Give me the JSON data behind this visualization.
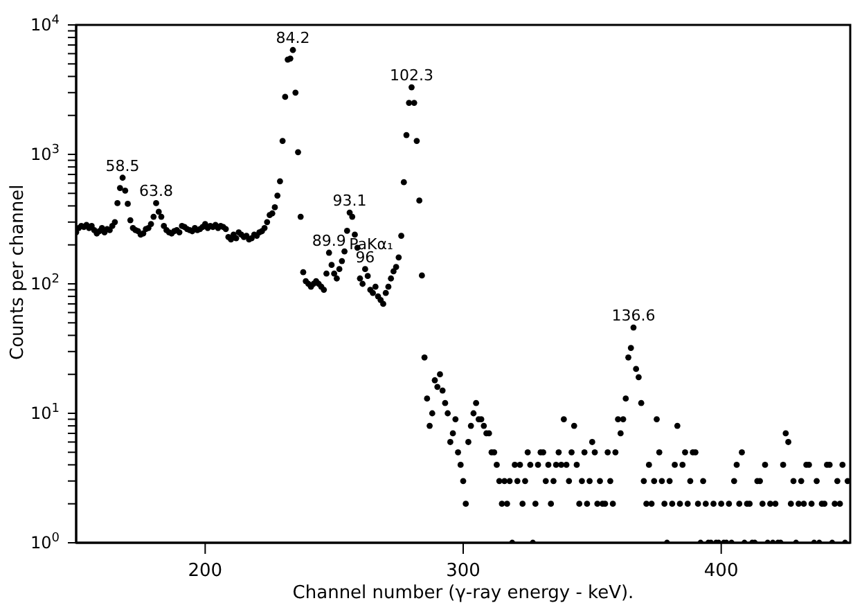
{
  "chart_data": {
    "type": "scatter",
    "xlabel": "Channel number (γ-ray energy - keV).",
    "ylabel": "Counts per channel",
    "log": "y",
    "marker": "circle",
    "grid": false,
    "xlim": [
      150,
      450
    ],
    "xticks": [
      200,
      300,
      400
    ],
    "ylim": [
      1,
      10000
    ],
    "yticks": [
      {
        "value": 1,
        "label": "10$^{0}$"
      },
      {
        "value": 2,
        "label": null
      },
      {
        "value": 3,
        "label": null
      },
      {
        "value": 4,
        "label": null
      },
      {
        "value": 5,
        "label": null
      },
      {
        "value": 6,
        "label": null
      },
      {
        "value": 7,
        "label": null
      },
      {
        "value": 8,
        "label": null
      },
      {
        "value": 9,
        "label": null
      },
      {
        "value": 10,
        "label": "10$^{1}$"
      },
      {
        "value": 20,
        "label": null
      },
      {
        "value": 30,
        "label": null
      },
      {
        "value": 40,
        "label": null
      },
      {
        "value": 50,
        "label": null
      },
      {
        "value": 60,
        "label": null
      },
      {
        "value": 70,
        "label": null
      },
      {
        "value": 80,
        "label": null
      },
      {
        "value": 90,
        "label": null
      },
      {
        "value": 100,
        "label": "10$^{2}$"
      },
      {
        "value": 200,
        "label": null
      },
      {
        "value": 300,
        "label": null
      },
      {
        "value": 400,
        "label": null
      },
      {
        "value": 500,
        "label": null
      },
      {
        "value": 600,
        "label": null
      },
      {
        "value": 700,
        "label": null
      },
      {
        "value": 800,
        "label": null
      },
      {
        "value": 900,
        "label": null
      },
      {
        "value": 1000,
        "label": "10$^{3}$"
      },
      {
        "value": 2000,
        "label": null
      },
      {
        "value": 3000,
        "label": null
      },
      {
        "value": 4000,
        "label": null
      },
      {
        "value": 5000,
        "label": null
      },
      {
        "value": 6000,
        "label": null
      },
      {
        "value": 7000,
        "label": null
      },
      {
        "value": 8000,
        "label": null
      },
      {
        "value": 9000,
        "label": null
      },
      {
        "value": 10000,
        "label": "10$^{4}$"
      }
    ],
    "annotations": [
      {
        "text": "58.5",
        "x": 168,
        "y": 660
      },
      {
        "text": "63.8",
        "x": 181,
        "y": 420
      },
      {
        "text": "84.2",
        "x": 234,
        "y": 6400
      },
      {
        "text": "89.9",
        "x": 248,
        "y": 174
      },
      {
        "text": "93.1",
        "x": 256,
        "y": 355
      },
      "PaKα₁",
      {
        "text": "96",
        "x": 262,
        "y": 130
      },
      {
        "text": "102.3",
        "x": 280,
        "y": 3300
      },
      {
        "text": "136.6",
        "x": 366,
        "y": 46
      }
    ],
    "series": [
      {
        "color": "#000000",
        "x": [
          150,
          151,
          152,
          153,
          154,
          155,
          156,
          157,
          158,
          159,
          160,
          161,
          162,
          163,
          164,
          165,
          166,
          167,
          168,
          169,
          170,
          171,
          172,
          173,
          174,
          175,
          176,
          177,
          178,
          179,
          180,
          181,
          182,
          183,
          184,
          185,
          186,
          187,
          188,
          189,
          190,
          191,
          192,
          193,
          194,
          195,
          196,
          197,
          198,
          199,
          200,
          201,
          202,
          203,
          204,
          205,
          206,
          207,
          208,
          209,
          210,
          211,
          212,
          213,
          214,
          215,
          216,
          217,
          218,
          219,
          220,
          221,
          222,
          223,
          224,
          225,
          226,
          227,
          228,
          229,
          230,
          231,
          232,
          233,
          234,
          235,
          236,
          237,
          238,
          239,
          240,
          241,
          242,
          243,
          244,
          245,
          246,
          247,
          248,
          249,
          250,
          251,
          252,
          253,
          254,
          255,
          256,
          257,
          258,
          259,
          260,
          261,
          262,
          263,
          264,
          265,
          266,
          267,
          268,
          269,
          270,
          271,
          272,
          273,
          274,
          275,
          276,
          277,
          278,
          279,
          280,
          281,
          282,
          283,
          284,
          285,
          286,
          287,
          288,
          289,
          290,
          291,
          292,
          293,
          294,
          295,
          296,
          297,
          298,
          299,
          300,
          301,
          302,
          303,
          304,
          305,
          306,
          307,
          308,
          309,
          310,
          311,
          312,
          313,
          314,
          315,
          316,
          317,
          318,
          319,
          320,
          321,
          322,
          323,
          324,
          325,
          326,
          327,
          328,
          329,
          330,
          331,
          332,
          333,
          334,
          335,
          336,
          337,
          338,
          339,
          340,
          341,
          342,
          343,
          344,
          345,
          346,
          347,
          348,
          349,
          350,
          351,
          352,
          353,
          354,
          355,
          356,
          357,
          358,
          359,
          360,
          361,
          362,
          363,
          364,
          365,
          366,
          367,
          368,
          369,
          370,
          371,
          372,
          373,
          374,
          375,
          376,
          377,
          378,
          379,
          380,
          381,
          382,
          383,
          384,
          385,
          386,
          387,
          388,
          389,
          390,
          391,
          392,
          393,
          394,
          395,
          396,
          397,
          398,
          399,
          400,
          401,
          402,
          403,
          404,
          405,
          406,
          407,
          408,
          409,
          410,
          411,
          412,
          413,
          414,
          415,
          416,
          417,
          418,
          419,
          420,
          421,
          422,
          423,
          424,
          425,
          426,
          427,
          428,
          429,
          430,
          431,
          432,
          433,
          434,
          435,
          436,
          437,
          438,
          439,
          440,
          441,
          442,
          443,
          444,
          445,
          446,
          447,
          448,
          449
        ],
        "values": [
          250,
          270,
          280,
          275,
          285,
          270,
          280,
          260,
          245,
          255,
          270,
          250,
          265,
          260,
          280,
          300,
          420,
          550,
          660,
          525,
          415,
          310,
          270,
          260,
          255,
          240,
          245,
          265,
          270,
          290,
          330,
          420,
          360,
          330,
          280,
          260,
          250,
          245,
          255,
          260,
          250,
          280,
          275,
          265,
          260,
          255,
          270,
          260,
          265,
          275,
          290,
          270,
          280,
          275,
          285,
          270,
          280,
          275,
          265,
          230,
          220,
          240,
          225,
          250,
          240,
          230,
          235,
          220,
          225,
          240,
          235,
          250,
          255,
          270,
          300,
          340,
          350,
          390,
          480,
          620,
          1270,
          2780,
          5400,
          5500,
          6400,
          3000,
          1040,
          330,
          123,
          105,
          100,
          95,
          100,
          105,
          100,
          95,
          90,
          120,
          174,
          140,
          120,
          110,
          130,
          150,
          178,
          257,
          355,
          330,
          240,
          190,
          110,
          100,
          130,
          115,
          90,
          85,
          95,
          80,
          75,
          70,
          85,
          95,
          110,
          125,
          135,
          160,
          235,
          610,
          1410,
          2500,
          3300,
          2500,
          1270,
          440,
          116,
          27,
          13,
          8,
          10,
          18,
          16,
          20,
          15,
          12,
          10,
          6,
          7,
          9,
          5,
          4,
          3,
          2,
          6,
          8,
          10,
          12,
          9,
          9,
          8,
          7,
          7,
          5,
          5,
          4,
          3,
          2,
          3,
          2,
          3,
          1,
          4,
          3,
          4,
          2,
          3,
          5,
          4,
          1,
          2,
          4,
          5,
          5,
          3,
          4,
          2,
          3,
          4,
          5,
          4,
          9,
          4,
          3,
          5,
          8,
          4,
          2,
          3,
          5,
          2,
          3,
          6,
          5,
          2,
          3,
          2,
          2,
          5,
          3,
          2,
          5,
          9,
          7,
          9,
          13,
          27,
          32,
          46,
          22,
          19,
          12,
          3,
          2,
          4,
          2,
          3,
          9,
          5,
          3,
          2,
          1,
          3,
          2,
          4,
          8,
          2,
          4,
          5,
          2,
          3,
          5,
          5,
          2,
          1,
          3,
          2,
          1,
          1,
          2,
          1,
          1,
          2,
          1,
          1,
          2,
          1,
          3,
          4,
          2,
          5,
          1,
          2,
          2,
          1,
          1,
          3,
          3,
          2,
          4,
          1,
          2,
          1,
          2,
          1,
          1,
          4,
          7,
          6,
          2,
          3,
          1,
          2,
          3,
          2,
          4,
          4,
          2,
          1,
          3,
          1,
          2,
          2,
          4,
          4,
          1,
          2,
          3,
          2,
          4,
          1,
          3
        ]
      }
    ]
  }
}
